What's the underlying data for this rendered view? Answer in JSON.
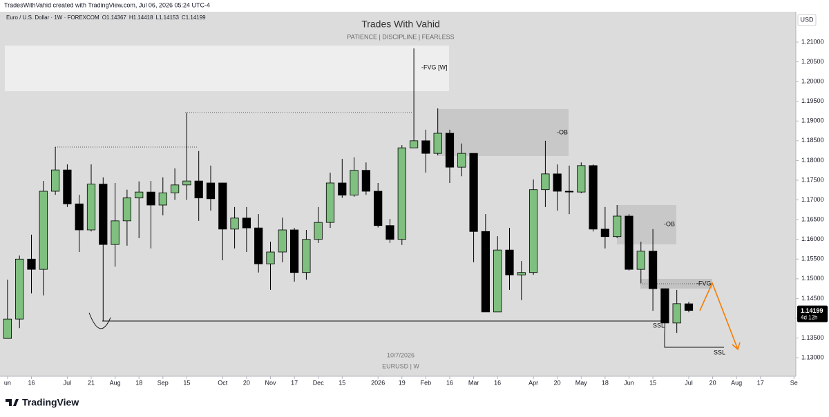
{
  "header": {
    "attribution": "TradesWithVahid created with TradingView.com, Jul 06, 2026 05:24 UTC-4",
    "symbol": "Euro / U.S. Dollar · 1W · FOREXCOM",
    "ohlc_labels": [
      "O",
      "H",
      "L",
      "C"
    ],
    "currency": "USD",
    "countdown": "4d 12h",
    "logo": "TradingView"
  },
  "chart_data": {
    "type": "candlestick",
    "title": "Trades With Vahid",
    "subtitle": "PATIENCE  |  DISCIPLINE  |  FEARLESS",
    "watermark": [
      "10/7/2026",
      "EURUSD | W"
    ],
    "annotations": {
      "fvg_weekly": "-FVG [W]",
      "ob_upper": "-OB",
      "ob_lower": "-OB",
      "fvg": "-FVG",
      "ssl_upper": "SSL",
      "ssl_lower": "SSL"
    },
    "up_color": "#7fbf7f",
    "down_color": "#000000",
    "series": {
      "open": [
        1.1349,
        1.1398,
        1.155,
        1.1524,
        1.1722,
        1.1776,
        1.169,
        1.1624,
        1.174,
        1.1587,
        1.1647,
        1.1705,
        1.172,
        1.1687,
        1.1718,
        1.1738,
        1.1748,
        1.1743,
        1.1743,
        1.1626,
        1.1654,
        1.1629,
        1.1538,
        1.1568,
        1.1624,
        1.1516,
        1.16,
        1.1643,
        1.1743,
        1.1712,
        1.1775,
        1.1722,
        1.1635,
        1.16,
        1.1832,
        1.185,
        1.1818,
        1.1869,
        1.1783,
        1.1818,
        1.162,
        1.1416,
        1.1573,
        1.151,
        1.1516,
        1.1726,
        1.1766,
        1.1722,
        1.172,
        1.1787,
        1.1626,
        1.1607,
        1.1659,
        1.1524,
        1.157,
        1.1475,
        1.1388,
        1.14367
      ],
      "high": [
        1.1498,
        1.1559,
        1.1612,
        1.1748,
        1.1834,
        1.179,
        1.1713,
        1.179,
        1.1757,
        1.1743,
        1.1726,
        1.1747,
        1.1748,
        1.1757,
        1.178,
        1.1921,
        1.1824,
        1.1787,
        1.1743,
        1.1682,
        1.1682,
        1.1664,
        1.1594,
        1.1655,
        1.1629,
        1.1624,
        1.1682,
        1.1769,
        1.1804,
        1.1808,
        1.1795,
        1.1743,
        1.1652,
        1.1839,
        1.2084,
        1.1878,
        1.1932,
        1.1878,
        1.1843,
        1.1818,
        1.1664,
        1.1608,
        1.1629,
        1.1545,
        1.1752,
        1.185,
        1.179,
        1.1787,
        1.1795,
        1.179,
        1.1682,
        1.1687,
        1.1664,
        1.1594,
        1.1626,
        1.1475,
        1.1472,
        1.14418
      ],
      "low": [
        1.1349,
        1.1375,
        1.1463,
        1.1458,
        1.1713,
        1.1682,
        1.1568,
        1.162,
        1.1393,
        1.1531,
        1.1584,
        1.1603,
        1.1577,
        1.1661,
        1.17,
        1.17,
        1.1647,
        1.1673,
        1.1547,
        1.1577,
        1.1568,
        1.1516,
        1.1472,
        1.1542,
        1.1493,
        1.1498,
        1.1591,
        1.1629,
        1.1705,
        1.1708,
        1.1713,
        1.163,
        1.1591,
        1.1586,
        1.1832,
        1.1769,
        1.1813,
        1.1743,
        1.176,
        1.1542,
        1.1416,
        1.1416,
        1.1472,
        1.1446,
        1.151,
        1.1682,
        1.1673,
        1.1664,
        1.1717,
        1.162,
        1.1577,
        1.1603,
        1.1521,
        1.1489,
        1.1419,
        1.1367,
        1.1363,
        1.14153
      ],
      "close": [
        1.1398,
        1.155,
        1.1524,
        1.1722,
        1.1776,
        1.169,
        1.1624,
        1.174,
        1.1587,
        1.1647,
        1.1705,
        1.172,
        1.1687,
        1.1718,
        1.1738,
        1.1748,
        1.1705,
        1.1703,
        1.1626,
        1.1654,
        1.1629,
        1.1538,
        1.1568,
        1.1624,
        1.1516,
        1.16,
        1.1643,
        1.1743,
        1.1712,
        1.1775,
        1.1722,
        1.1635,
        1.16,
        1.1832,
        1.185,
        1.1818,
        1.1869,
        1.1783,
        1.1818,
        1.162,
        1.1416,
        1.1573,
        1.151,
        1.1516,
        1.1726,
        1.1766,
        1.1722,
        1.172,
        1.1787,
        1.1626,
        1.1607,
        1.1659,
        1.1524,
        1.157,
        1.1475,
        1.1388,
        1.1437,
        1.14199
      ]
    },
    "xlim": [
      -0.63,
      65.96
    ],
    "xticks": [
      {
        "value": 0,
        "label": "un"
      },
      {
        "value": 2,
        "label": "16"
      },
      {
        "value": 5,
        "label": "Jul"
      },
      {
        "value": 7,
        "label": "21"
      },
      {
        "value": 9,
        "label": "Aug"
      },
      {
        "value": 11,
        "label": "18"
      },
      {
        "value": 13,
        "label": "Sep"
      },
      {
        "value": 15,
        "label": "15"
      },
      {
        "value": 18,
        "label": "Oct"
      },
      {
        "value": 20,
        "label": "20"
      },
      {
        "value": 22,
        "label": "Nov"
      },
      {
        "value": 24,
        "label": "17"
      },
      {
        "value": 26,
        "label": "Dec"
      },
      {
        "value": 28,
        "label": "15"
      },
      {
        "value": 31,
        "label": "2026"
      },
      {
        "value": 33,
        "label": "19"
      },
      {
        "value": 35,
        "label": "Feb"
      },
      {
        "value": 37,
        "label": "16"
      },
      {
        "value": 39,
        "label": "Mar"
      },
      {
        "value": 41,
        "label": "16"
      },
      {
        "value": 44,
        "label": "Apr"
      },
      {
        "value": 46,
        "label": "20"
      },
      {
        "value": 48,
        "label": "May"
      },
      {
        "value": 50,
        "label": "18"
      },
      {
        "value": 52,
        "label": "Jun"
      },
      {
        "value": 54,
        "label": "15"
      },
      {
        "value": 57,
        "label": "Jul"
      },
      {
        "value": 59,
        "label": "20"
      },
      {
        "value": 61,
        "label": "Aug"
      },
      {
        "value": 63,
        "label": "17"
      },
      {
        "value": 65.8,
        "label": "Se"
      }
    ],
    "ylim": [
      1.1253,
      1.2177
    ],
    "yticks": [
      {
        "value": 1.21,
        "label": "1.21000"
      },
      {
        "value": 1.205,
        "label": "1.20500"
      },
      {
        "value": 1.2,
        "label": "1.20000"
      },
      {
        "value": 1.195,
        "label": "1.19500"
      },
      {
        "value": 1.19,
        "label": "1.19000"
      },
      {
        "value": 1.185,
        "label": "1.18500"
      },
      {
        "value": 1.18,
        "label": "1.18000"
      },
      {
        "value": 1.175,
        "label": "1.17500"
      },
      {
        "value": 1.17,
        "label": "1.17000"
      },
      {
        "value": 1.165,
        "label": "1.16500"
      },
      {
        "value": 1.16,
        "label": "1.16000"
      },
      {
        "value": 1.155,
        "label": "1.15500"
      },
      {
        "value": 1.15,
        "label": "1.15000"
      },
      {
        "value": 1.145,
        "label": "1.14500"
      },
      {
        "value": 1.14,
        "label": "1.14000"
      },
      {
        "value": 1.135,
        "label": "1.13500"
      },
      {
        "value": 1.13,
        "label": "1.13000"
      }
    ],
    "grid": false
  }
}
